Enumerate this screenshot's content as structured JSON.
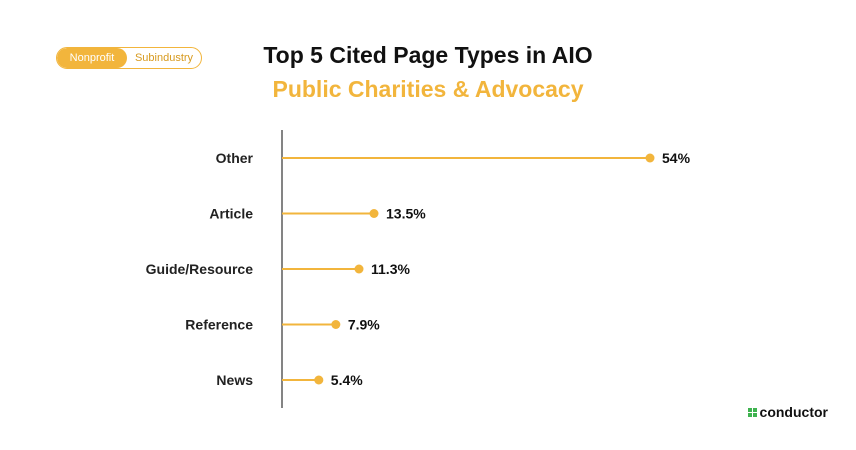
{
  "badge": {
    "primary": "Nonprofit",
    "secondary": "Subindustry"
  },
  "colors": {
    "accent": "#f2b53c",
    "axis": "#333333",
    "brand_green": "#3eb34f"
  },
  "logo": {
    "text": "conductor"
  },
  "chart_data": {
    "type": "bar",
    "title": "Top 5 Cited Page Types in AIO",
    "subtitle": "Public Charities & Advocacy",
    "categories": [
      "Other",
      "Article",
      "Guide/Resource",
      "Reference",
      "News"
    ],
    "values": [
      54,
      13.5,
      11.3,
      7.9,
      5.4
    ],
    "value_labels": [
      "54%",
      "13.5%",
      "11.3%",
      "7.9%",
      "5.4%"
    ],
    "orientation": "horizontal",
    "style": "lollipop",
    "xlim": [
      0,
      54
    ],
    "grid": false,
    "legend": "none"
  }
}
